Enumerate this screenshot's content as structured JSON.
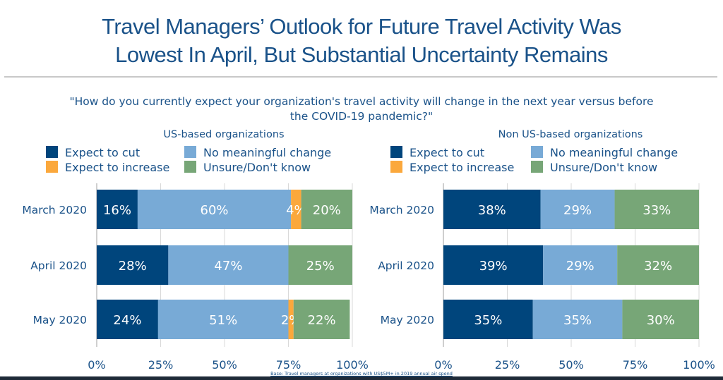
{
  "title_line1": "Travel Managers’ Outlook for Future Travel Activity Was",
  "title_line2": "Lowest In April, But Substantial Uncertainty Remains",
  "question_line1": "\"How do you currently expect your organization's travel activity will change in the next year versus before",
  "question_line2": "the COVID-19 pandemic?\"",
  "base_note": "Base: Travel  managers  at organizations with US$5M+ in 2019 annual air spend",
  "legend": [
    {
      "label": "Expect to cut",
      "color": "#00457c"
    },
    {
      "label": "No meaningful change",
      "color": "#78aad6"
    },
    {
      "label": "Expect to increase",
      "color": "#fba83c"
    },
    {
      "label": "Unsure/Don't know",
      "color": "#77a677"
    }
  ],
  "chart_data": [
    {
      "type": "bar",
      "orientation": "horizontal",
      "stacked": true,
      "title": "US-based organizations",
      "categories": [
        "March 2020",
        "April 2020",
        "May 2020"
      ],
      "series": [
        {
          "name": "Expect to cut",
          "color": "#00457c",
          "values": [
            16,
            28,
            24
          ]
        },
        {
          "name": "No meaningful change",
          "color": "#78aad6",
          "values": [
            60,
            47,
            51
          ]
        },
        {
          "name": "Expect to increase",
          "color": "#fba83c",
          "values": [
            4,
            0,
            2
          ]
        },
        {
          "name": "Unsure/Don't know",
          "color": "#77a677",
          "values": [
            20,
            25,
            22
          ]
        }
      ],
      "xlim": [
        0,
        100
      ],
      "xticks": [
        "0%",
        "25%",
        "50%",
        "75%",
        "100%"
      ],
      "grid": true,
      "legend_position": "top"
    },
    {
      "type": "bar",
      "orientation": "horizontal",
      "stacked": true,
      "title": "Non US-based organizations",
      "categories": [
        "March 2020",
        "April 2020",
        "May 2020"
      ],
      "series": [
        {
          "name": "Expect to cut",
          "color": "#00457c",
          "values": [
            38,
            39,
            35
          ]
        },
        {
          "name": "No meaningful change",
          "color": "#78aad6",
          "values": [
            29,
            29,
            35
          ]
        },
        {
          "name": "Expect to increase",
          "color": "#fba83c",
          "values": [
            0,
            0,
            0
          ]
        },
        {
          "name": "Unsure/Don't know",
          "color": "#77a677",
          "values": [
            33,
            32,
            30
          ]
        }
      ],
      "xlim": [
        0,
        100
      ],
      "xticks": [
        "0%",
        "25%",
        "50%",
        "75%",
        "100%"
      ],
      "grid": true,
      "legend_position": "top"
    }
  ]
}
